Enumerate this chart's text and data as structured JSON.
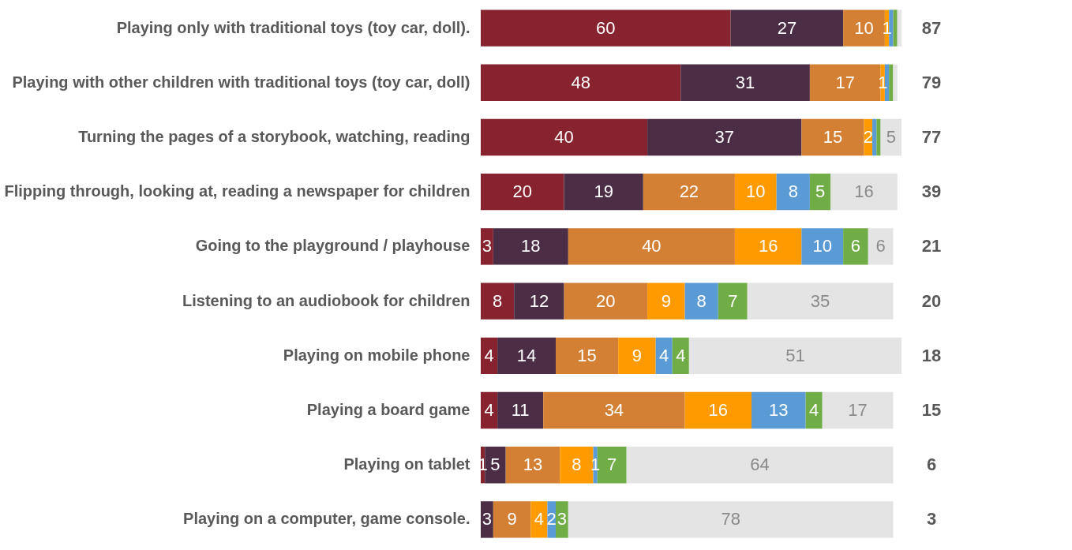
{
  "chart_data": {
    "type": "bar",
    "orientation": "horizontal",
    "stacked": true,
    "tick_labels": "y",
    "xlim": [
      0,
      101
    ],
    "categories": [
      "Playing only with traditional toys (toy car, doll).",
      "Playing with other children with traditional toys (toy car, doll)",
      "Turning the pages of a storybook, watching, reading",
      "Flipping through, looking at, reading a newspaper for children",
      "Going to the playground / playhouse",
      "Listening to an audiobook for children",
      "Playing on mobile phone",
      "Playing a board game",
      "Playing on tablet",
      "Playing on a computer, game console."
    ],
    "series": [
      {
        "color": "#86232f",
        "values": [
          60,
          48,
          40,
          20,
          3,
          8,
          4,
          4,
          1,
          0
        ],
        "value_labels": [
          "60",
          "48",
          "40",
          "20",
          "3",
          "8",
          "4",
          "4",
          "1",
          null
        ]
      },
      {
        "color": "#4b2e45",
        "values": [
          27,
          31,
          37,
          19,
          18,
          12,
          14,
          11,
          5,
          3
        ],
        "value_labels": [
          "27",
          "31",
          "37",
          "19",
          "18",
          "12",
          "14",
          "11",
          "5",
          "3"
        ]
      },
      {
        "color": "#d38034",
        "values": [
          10,
          17,
          15,
          22,
          40,
          20,
          15,
          34,
          13,
          9
        ],
        "value_labels": [
          "10",
          "17",
          "15",
          "22",
          "40",
          "20",
          "15",
          "34",
          "13",
          "9"
        ]
      },
      {
        "color": "#ff9a00",
        "values": [
          1,
          1,
          2,
          10,
          16,
          9,
          9,
          16,
          8,
          4
        ],
        "value_labels": [
          "1",
          "1",
          "2",
          "10",
          "16",
          "9",
          "9",
          "16",
          "8",
          "4"
        ]
      },
      {
        "color": "#5a9bd5",
        "values": [
          1,
          1,
          1,
          8,
          10,
          8,
          4,
          13,
          1,
          2
        ],
        "value_labels": [
          null,
          null,
          null,
          "8",
          "10",
          "8",
          "4",
          "13",
          "1",
          "2"
        ]
      },
      {
        "color": "#70ad47",
        "values": [
          1,
          1,
          1,
          5,
          6,
          7,
          4,
          4,
          7,
          3
        ],
        "value_labels": [
          null,
          null,
          null,
          "5",
          "6",
          "7",
          "4",
          "4",
          "7",
          "3"
        ]
      },
      {
        "color": "#e4e4e4",
        "values": [
          1,
          1,
          5,
          16,
          6,
          35,
          51,
          17,
          64,
          78
        ],
        "value_labels": [
          null,
          null,
          "5",
          "16",
          "6",
          "35",
          "51",
          "17",
          "64",
          "78"
        ]
      }
    ],
    "annotations": [
      "87",
      "79",
      "77",
      "39",
      "21",
      "20",
      "18",
      "15",
      "6",
      "3"
    ]
  }
}
